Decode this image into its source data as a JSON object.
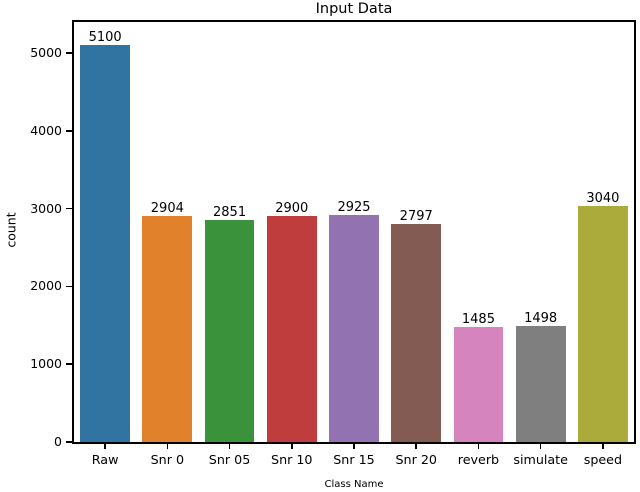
{
  "chart_data": {
    "type": "bar",
    "title": "Input Data",
    "xlabel": "Class Name",
    "ylabel": "count",
    "categories": [
      "Raw",
      "Snr 0",
      "Snr 05",
      "Snr 10",
      "Snr 15",
      "Snr 20",
      "reverb",
      "simulate",
      "speed"
    ],
    "values": [
      5100,
      2904,
      2851,
      2900,
      2925,
      2797,
      1485,
      1498,
      3040
    ],
    "bar_labels": [
      "5100",
      "2904",
      "2851",
      "2900",
      "2925",
      "2797",
      "1485",
      "1498",
      "3040"
    ],
    "bar_colors": [
      "#3274a1",
      "#e1812c",
      "#3a923a",
      "#c03d3e",
      "#9372b2",
      "#845b53",
      "#d684bd",
      "#7f7f7f",
      "#aaab3a"
    ],
    "yticks": [
      0,
      1000,
      2000,
      3000,
      4000,
      5000
    ],
    "ylim": [
      0,
      5400
    ],
    "grid": false,
    "legend": null,
    "axis_color": "#000000",
    "background_color": "#ffffff"
  }
}
